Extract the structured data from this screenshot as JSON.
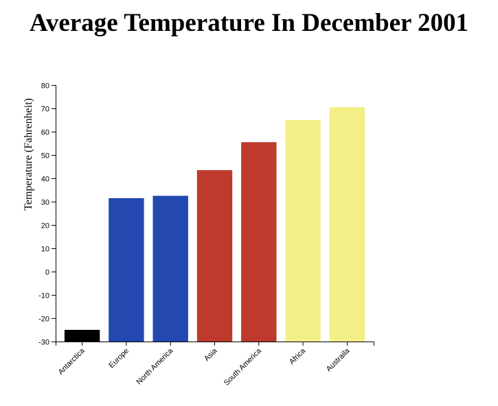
{
  "chart_data": {
    "type": "bar",
    "title": "Average Temperature In December 2001",
    "xlabel": "",
    "ylabel": "Temperature (Fahrenheit)",
    "categories": [
      "Antarctica",
      "Europe",
      "North America",
      "Asia",
      "South America",
      "Africa",
      "Austraila"
    ],
    "values": [
      -25,
      31.5,
      32.5,
      43.5,
      55.5,
      65,
      70.5
    ],
    "colors": [
      "#000000",
      "#2349b0",
      "#2349b0",
      "#bd3a2c",
      "#bd3a2c",
      "#f3ef87",
      "#f3ef87"
    ],
    "ylim": [
      -30,
      80
    ],
    "yticks": [
      80,
      70,
      60,
      50,
      40,
      30,
      20,
      10,
      0,
      -10,
      -20,
      -30
    ],
    "grid": false,
    "legend": "none"
  }
}
